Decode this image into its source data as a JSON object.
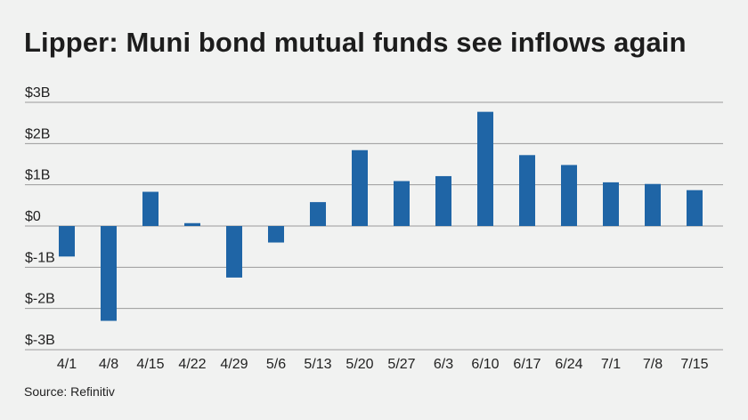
{
  "chart_data": {
    "type": "bar",
    "title": "Lipper: Muni bond mutual funds see inflows again",
    "xlabel": "",
    "ylabel": "",
    "categories": [
      "4/1",
      "4/8",
      "4/15",
      "4/22",
      "4/29",
      "5/6",
      "5/13",
      "5/20",
      "5/27",
      "6/3",
      "6/10",
      "6/17",
      "6/24",
      "7/1",
      "7/8",
      "7/15"
    ],
    "values": [
      -0.74,
      -2.3,
      0.83,
      0.07,
      -1.25,
      -0.4,
      0.58,
      1.84,
      1.09,
      1.21,
      2.77,
      1.72,
      1.48,
      1.06,
      1.02,
      0.87
    ],
    "ylim": [
      -3,
      3
    ],
    "yticks": [
      3,
      2,
      1,
      0,
      -1,
      -2,
      -3
    ],
    "ytick_labels": [
      "$3B",
      "$2B",
      "$1B",
      "$0",
      "$-1B",
      "$-2B",
      "$-3B"
    ],
    "grid": true,
    "bar_color": "#1f65a6",
    "grid_color": "#9a9a9a"
  },
  "source": "Source: Refinitiv"
}
